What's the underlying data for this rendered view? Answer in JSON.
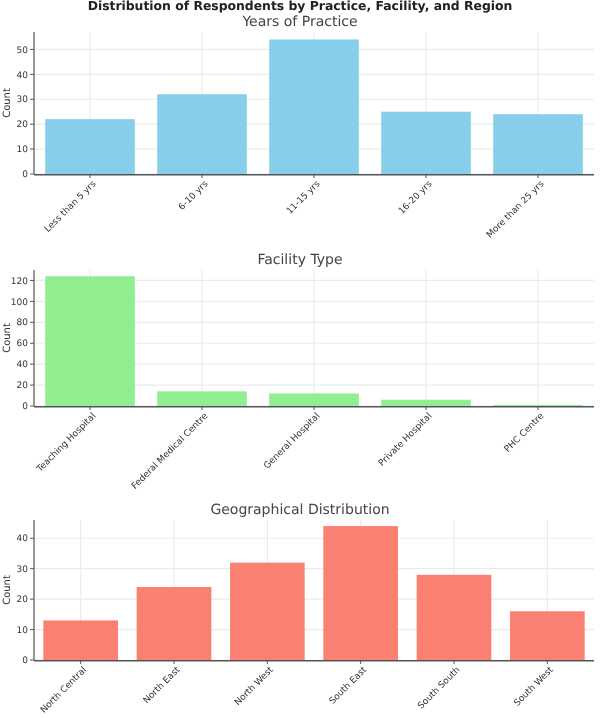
{
  "chart_data": [
    {
      "type": "bar",
      "title": "Distribution of Respondents by Practice, Facility, and Region",
      "subtitle": "Years of Practice",
      "ylabel": "Count",
      "categories": [
        "Less than 5 yrs",
        "6-10 yrs",
        "11-15 yrs",
        "16-20 yrs",
        "More than 25 yrs"
      ],
      "values": [
        22,
        32,
        54,
        25,
        24
      ],
      "color": "#87ceeb",
      "ylim": [
        0,
        57
      ],
      "yticks": [
        0,
        10,
        20,
        30,
        40,
        50
      ],
      "grid": true
    },
    {
      "type": "bar",
      "title": "Facility Type",
      "ylabel": "Count",
      "categories": [
        "Teaching Hospital",
        "Federal Medical Centre",
        "General Hospital",
        "Private Hospital",
        "PHC Centre"
      ],
      "values": [
        124,
        14,
        12,
        6,
        1
      ],
      "color": "#90ee90",
      "ylim": [
        0,
        130
      ],
      "yticks": [
        0,
        20,
        40,
        60,
        80,
        100,
        120
      ],
      "grid": true
    },
    {
      "type": "bar",
      "title": "Geographical Distribution",
      "ylabel": "Count",
      "categories": [
        "North Central",
        "North East",
        "North West",
        "South East",
        "South South",
        "South West"
      ],
      "values": [
        13,
        24,
        32,
        44,
        28,
        16
      ],
      "color": "#fa8072",
      "ylim": [
        0,
        46
      ],
      "yticks": [
        0,
        10,
        20,
        30,
        40
      ],
      "grid": true
    }
  ]
}
